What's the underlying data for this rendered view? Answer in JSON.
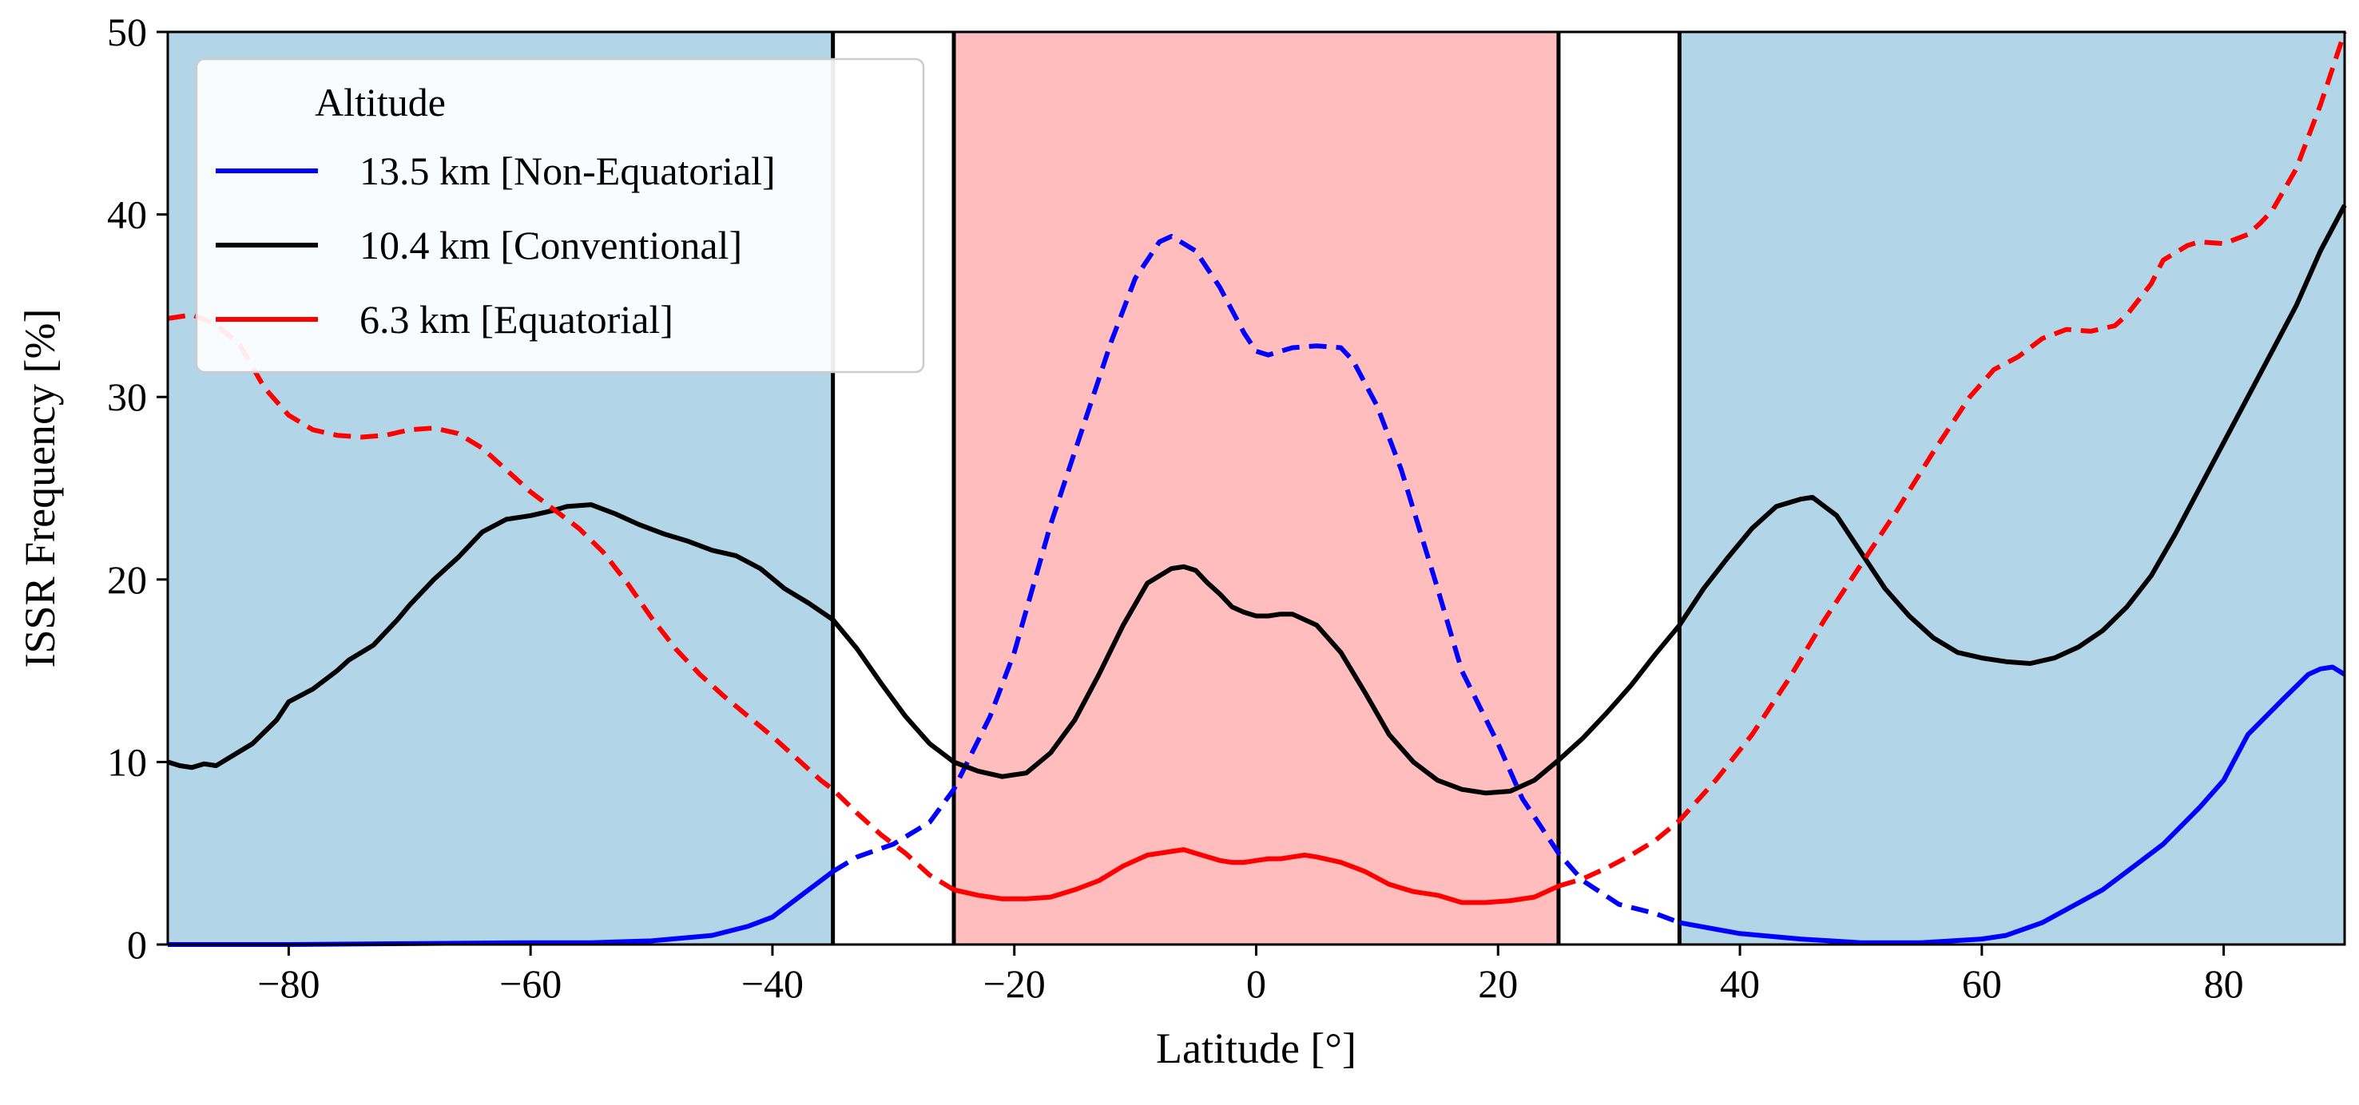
{
  "chart_data": {
    "type": "line",
    "title": "",
    "xlabel": "Latitude [°]",
    "ylabel": "ISSR Frequency [%]",
    "xlim": [
      -90,
      90
    ],
    "ylim": [
      0,
      50
    ],
    "xticks": [
      -80,
      -60,
      -40,
      -20,
      0,
      20,
      40,
      60,
      80
    ],
    "xtick_labels": [
      "−80",
      "−60",
      "−40",
      "−20",
      "0",
      "20",
      "40",
      "60",
      "80"
    ],
    "yticks": [
      0,
      10,
      20,
      30,
      40,
      50
    ],
    "ytick_labels": [
      "0",
      "10",
      "20",
      "30",
      "40",
      "50"
    ],
    "grid": false,
    "legend": {
      "title": "Altitude",
      "position": "top-left",
      "entries": [
        {
          "label": "13.5 km [Non-Equatorial]",
          "color": "#0000ff"
        },
        {
          "label": "10.4 km [Conventional]",
          "color": "#000000"
        },
        {
          "label": "6.3 km [Equatorial]",
          "color": "#ff0000"
        }
      ]
    },
    "regions": [
      {
        "name": "non-equatorial-south",
        "from": -90,
        "to": -35,
        "color": "#b3d5e8"
      },
      {
        "name": "equatorial",
        "from": -25,
        "to": 25,
        "color": "#ffbdbe"
      },
      {
        "name": "non-equatorial-north",
        "from": 35,
        "to": 90,
        "color": "#b3d5e8"
      }
    ],
    "vlines": [
      -35,
      -25,
      25,
      35
    ],
    "series": [
      {
        "name": "13.5 km [Non-Equatorial]",
        "color": "#0000ff",
        "dashed_range": [
          -35,
          35
        ],
        "x": [
          -90,
          -80,
          -70,
          -60,
          -55,
          -50,
          -45,
          -42,
          -40,
          -38,
          -36,
          -35,
          -33,
          -30,
          -27,
          -25,
          -22,
          -20,
          -17,
          -15,
          -12,
          -10,
          -8,
          -7,
          -5,
          -3,
          -1,
          0,
          1,
          2,
          3,
          5,
          7,
          8,
          10,
          12,
          15,
          17,
          20,
          22,
          25,
          27,
          30,
          33,
          35,
          40,
          45,
          50,
          55,
          60,
          62,
          65,
          70,
          72,
          75,
          78,
          80,
          82,
          85,
          87,
          88,
          89,
          90
        ],
        "y": [
          0,
          0,
          0.05,
          0.1,
          0.1,
          0.2,
          0.5,
          1.0,
          1.5,
          2.5,
          3.5,
          4.0,
          4.8,
          5.5,
          6.7,
          8.5,
          12.5,
          16,
          23,
          27,
          33,
          36.5,
          38.5,
          38.8,
          38,
          36,
          33.5,
          32.5,
          32.3,
          32.5,
          32.7,
          32.8,
          32.7,
          32,
          29.5,
          26,
          19.5,
          15,
          11,
          8,
          5,
          3.5,
          2.2,
          1.7,
          1.2,
          0.6,
          0.3,
          0.1,
          0.1,
          0.3,
          0.5,
          1.2,
          3.0,
          4.0,
          5.5,
          7.5,
          9.0,
          11.5,
          13.5,
          14.8,
          15.1,
          15.2,
          14.8
        ]
      },
      {
        "name": "10.4 km [Conventional]",
        "color": "#000000",
        "dashed_range": null,
        "x": [
          -90,
          -89,
          -88,
          -87,
          -86,
          -85,
          -83,
          -81,
          -80,
          -78,
          -76,
          -75,
          -73,
          -71,
          -70,
          -68,
          -66,
          -64,
          -62,
          -60,
          -58,
          -57,
          -55,
          -53,
          -51,
          -49,
          -47,
          -45,
          -43,
          -41,
          -39,
          -37,
          -35,
          -33,
          -31,
          -29,
          -27,
          -25,
          -23,
          -21,
          -19,
          -17,
          -15,
          -13,
          -11,
          -9,
          -7,
          -6,
          -5,
          -4,
          -3,
          -2,
          -1,
          0,
          1,
          2,
          3,
          5,
          7,
          9,
          11,
          13,
          15,
          17,
          19,
          21,
          23,
          25,
          27,
          29,
          31,
          33,
          35,
          37,
          39,
          41,
          43,
          45,
          46,
          48,
          50,
          52,
          54,
          56,
          58,
          60,
          62,
          64,
          66,
          68,
          70,
          72,
          74,
          76,
          78,
          80,
          82,
          84,
          86,
          88,
          90
        ],
        "y": [
          10,
          9.8,
          9.7,
          9.9,
          9.8,
          10.2,
          11,
          12.3,
          13.3,
          14,
          15,
          15.6,
          16.4,
          17.8,
          18.6,
          20,
          21.2,
          22.6,
          23.3,
          23.5,
          23.8,
          24,
          24.1,
          23.6,
          23,
          22.5,
          22.1,
          21.6,
          21.3,
          20.6,
          19.5,
          18.7,
          17.8,
          16.2,
          14.3,
          12.5,
          11,
          10,
          9.5,
          9.2,
          9.4,
          10.5,
          12.3,
          14.8,
          17.5,
          19.8,
          20.6,
          20.7,
          20.5,
          19.8,
          19.2,
          18.5,
          18.2,
          18.0,
          18.0,
          18.1,
          18.1,
          17.5,
          16.0,
          13.8,
          11.5,
          10.0,
          9.0,
          8.5,
          8.3,
          8.4,
          9.0,
          10.1,
          11.3,
          12.7,
          14.2,
          15.9,
          17.5,
          19.5,
          21.2,
          22.8,
          24.0,
          24.4,
          24.5,
          23.5,
          21.5,
          19.5,
          18.0,
          16.8,
          16.0,
          15.7,
          15.5,
          15.4,
          15.7,
          16.3,
          17.2,
          18.5,
          20.2,
          22.5,
          25,
          27.5,
          30,
          32.5,
          35,
          38,
          40.5
        ]
      },
      {
        "name": "6.3 km [Equatorial]",
        "color": "#ff0000",
        "dashed_range": [
          -90,
          -25,
          25,
          90
        ],
        "x": [
          -90,
          -88,
          -86,
          -84,
          -82,
          -80,
          -78,
          -76,
          -74,
          -72,
          -70,
          -68,
          -66,
          -64,
          -62,
          -60,
          -58,
          -56,
          -54,
          -52,
          -50,
          -48,
          -46,
          -44,
          -42,
          -40,
          -38,
          -36,
          -35,
          -33,
          -31,
          -29,
          -27,
          -25,
          -23,
          -21,
          -19,
          -17,
          -15,
          -13,
          -11,
          -9,
          -7,
          -6,
          -5,
          -4,
          -3,
          -2,
          -1,
          0,
          1,
          2,
          3,
          4,
          5,
          7,
          9,
          11,
          13,
          15,
          17,
          19,
          21,
          23,
          25,
          27,
          29,
          31,
          33,
          35,
          38,
          41,
          44,
          47,
          50,
          53,
          56,
          59,
          61,
          63,
          65,
          67,
          69,
          71,
          72,
          74,
          75,
          77,
          78,
          80,
          82,
          83,
          84,
          86,
          88,
          89,
          90
        ],
        "y": [
          34.3,
          34.5,
          34,
          32.8,
          30.5,
          29,
          28.2,
          27.9,
          27.8,
          27.9,
          28.2,
          28.3,
          28,
          27.2,
          26,
          24.8,
          23.8,
          22.8,
          21.5,
          19.8,
          17.9,
          16.2,
          14.8,
          13.6,
          12.5,
          11.4,
          10.2,
          9.0,
          8.5,
          7.2,
          6.0,
          5.0,
          3.8,
          3.0,
          2.7,
          2.5,
          2.5,
          2.6,
          3.0,
          3.5,
          4.3,
          4.9,
          5.1,
          5.2,
          5.0,
          4.8,
          4.6,
          4.5,
          4.5,
          4.6,
          4.7,
          4.7,
          4.8,
          4.9,
          4.8,
          4.5,
          4.0,
          3.3,
          2.9,
          2.7,
          2.3,
          2.3,
          2.4,
          2.6,
          3.2,
          3.6,
          4.2,
          4.9,
          5.7,
          6.8,
          9.0,
          11.5,
          14.5,
          17.8,
          20.8,
          23.8,
          27.0,
          30.0,
          31.5,
          32.2,
          33.2,
          33.7,
          33.6,
          33.9,
          34.5,
          36.2,
          37.5,
          38.3,
          38.5,
          38.4,
          38.9,
          39.5,
          40.2,
          42.5,
          46,
          48,
          50
        ]
      }
    ]
  }
}
